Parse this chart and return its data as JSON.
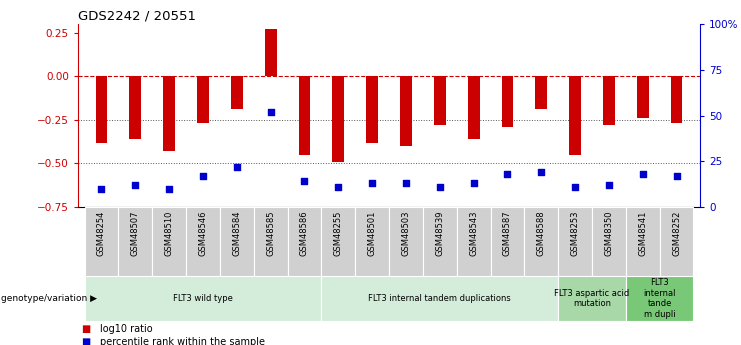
{
  "title": "GDS2242 / 20551",
  "samples": [
    "GSM48254",
    "GSM48507",
    "GSM48510",
    "GSM48546",
    "GSM48584",
    "GSM48585",
    "GSM48586",
    "GSM48255",
    "GSM48501",
    "GSM48503",
    "GSM48539",
    "GSM48543",
    "GSM48587",
    "GSM48588",
    "GSM48253",
    "GSM48350",
    "GSM48541",
    "GSM48252"
  ],
  "log10_ratio": [
    -0.38,
    -0.36,
    -0.43,
    -0.27,
    -0.19,
    0.27,
    -0.45,
    -0.49,
    -0.38,
    -0.4,
    -0.28,
    -0.36,
    -0.29,
    -0.19,
    -0.45,
    -0.28,
    -0.24,
    -0.27
  ],
  "percentile_rank": [
    10,
    12,
    10,
    17,
    22,
    52,
    14,
    11,
    13,
    13,
    11,
    13,
    18,
    19,
    11,
    12,
    18,
    17
  ],
  "bar_color": "#CC0000",
  "dot_color": "#0000CC",
  "ref_line_color": "#CC0000",
  "dotted_line_color": "#555555",
  "ylim_left": [
    -0.75,
    0.3
  ],
  "yticks_left": [
    -0.75,
    -0.5,
    -0.25,
    0,
    0.25
  ],
  "yticks_right": [
    0,
    25,
    50,
    75,
    100
  ],
  "ylim_right": [
    0,
    100
  ],
  "groups": [
    {
      "label": "FLT3 wild type",
      "start": 0,
      "end": 6,
      "color": "#d4edda"
    },
    {
      "label": "FLT3 internal tandem duplications",
      "start": 7,
      "end": 13,
      "color": "#d4edda"
    },
    {
      "label": "FLT3 aspartic acid\nmutation",
      "start": 14,
      "end": 15,
      "color": "#a8d8a8"
    },
    {
      "label": "FLT3\ninternal\ntande\nm dupli",
      "start": 16,
      "end": 17,
      "color": "#78c878"
    }
  ],
  "legend_label1": "log10 ratio",
  "legend_label2": "percentile rank within the sample",
  "genotype_label": "genotype/variation"
}
